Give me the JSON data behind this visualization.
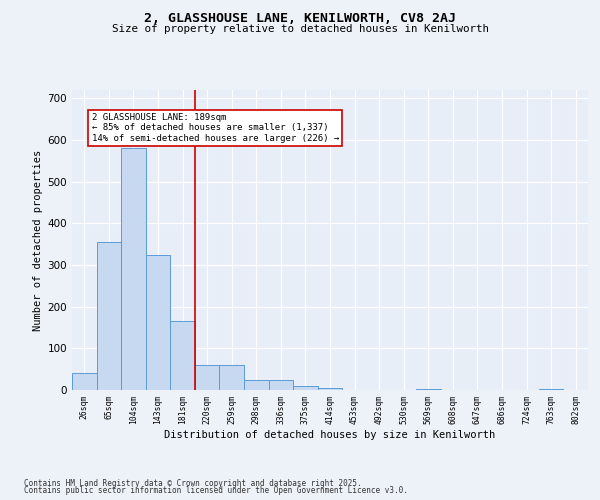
{
  "title1": "2, GLASSHOUSE LANE, KENILWORTH, CV8 2AJ",
  "title2": "Size of property relative to detached houses in Kenilworth",
  "xlabel": "Distribution of detached houses by size in Kenilworth",
  "ylabel": "Number of detached properties",
  "bins": [
    "26sqm",
    "65sqm",
    "104sqm",
    "143sqm",
    "181sqm",
    "220sqm",
    "259sqm",
    "298sqm",
    "336sqm",
    "375sqm",
    "414sqm",
    "453sqm",
    "492sqm",
    "530sqm",
    "569sqm",
    "608sqm",
    "647sqm",
    "686sqm",
    "724sqm",
    "763sqm",
    "802sqm"
  ],
  "values": [
    40,
    355,
    580,
    325,
    165,
    60,
    60,
    25,
    25,
    10,
    5,
    0,
    0,
    0,
    3,
    0,
    0,
    0,
    0,
    3,
    0
  ],
  "bar_color": "#c7d9f0",
  "bar_edge_color": "#5b9bd5",
  "bar_linewidth": 0.7,
  "vline_x": 4.5,
  "vline_color": "#cc0000",
  "annotation_text": "2 GLASSHOUSE LANE: 189sqm\n← 85% of detached houses are smaller (1,337)\n14% of semi-detached houses are larger (226) →",
  "ylim": [
    0,
    720
  ],
  "yticks": [
    0,
    100,
    200,
    300,
    400,
    500,
    600,
    700
  ],
  "bg_color": "#e8eef8",
  "grid_color": "#ffffff",
  "fig_bg_color": "#edf2f9",
  "footer1": "Contains HM Land Registry data © Crown copyright and database right 2025.",
  "footer2": "Contains public sector information licensed under the Open Government Licence v3.0."
}
